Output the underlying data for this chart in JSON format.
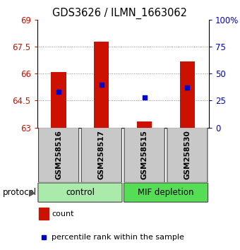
{
  "title": "GDS3626 / ILMN_1663062",
  "samples": [
    "GSM258516",
    "GSM258517",
    "GSM258515",
    "GSM258530"
  ],
  "bar_bottoms": [
    63.0,
    63.0,
    63.0,
    63.0
  ],
  "bar_tops": [
    66.1,
    67.8,
    63.35,
    66.7
  ],
  "blue_percentile": [
    33,
    40,
    28,
    37
  ],
  "ylim_left": [
    63,
    69
  ],
  "ylim_right": [
    0,
    100
  ],
  "yticks_left": [
    63,
    64.5,
    66,
    67.5,
    69
  ],
  "yticks_right": [
    0,
    25,
    50,
    75,
    100
  ],
  "ytick_labels_right": [
    "0",
    "25",
    "50",
    "75",
    "100%"
  ],
  "groups": [
    {
      "label": "control",
      "indices": [
        0,
        1
      ],
      "color": "#aaeaaa"
    },
    {
      "label": "MIF depletion",
      "indices": [
        2,
        3
      ],
      "color": "#55dd55"
    }
  ],
  "protocol_label": "protocol",
  "bar_color": "#cc1100",
  "blue_color": "#0000cc",
  "bar_width": 0.35,
  "grid_color": "#aaaaaa",
  "legend_red_label": "count",
  "legend_blue_label": "percentile rank within the sample",
  "left_tick_color": "#cc1100",
  "right_tick_color": "#0000cc",
  "sample_box_color": "#c8c8c8",
  "title_fontsize": 10.5,
  "tick_fontsize": 8.5,
  "sample_fontsize": 7.5,
  "proto_fontsize": 8.5,
  "legend_fontsize": 8
}
